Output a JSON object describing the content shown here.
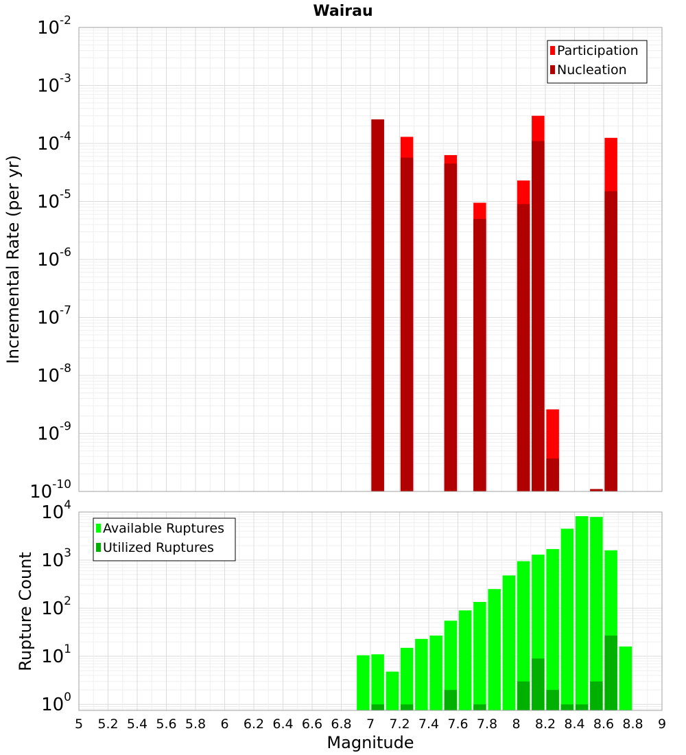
{
  "figure": {
    "title": "Wairau",
    "xlabel": "Magnitude"
  },
  "chart_data": [
    {
      "type": "bar",
      "title": "Wairau",
      "ylabel": "Incremental Rate (per yr)",
      "yscale": "log",
      "ylim": [
        1e-10,
        0.01
      ],
      "xlim": [
        5,
        9
      ],
      "grid": true,
      "legend_position": "top-right",
      "series": [
        {
          "name": "Participation",
          "color": "#ff0000",
          "x": [
            7.05,
            7.25,
            7.55,
            7.75,
            8.05,
            8.15,
            8.25,
            8.65
          ],
          "values": [
            0.00026,
            0.00013,
            6.3e-05,
            9.5e-06,
            2.3e-05,
            0.0003,
            2.6e-09,
            0.000125
          ]
        },
        {
          "name": "Nucleation",
          "color": "#b00000",
          "x": [
            7.05,
            7.25,
            7.55,
            7.75,
            8.05,
            8.15,
            8.25,
            8.55,
            8.65
          ],
          "values": [
            0.00026,
            5.7e-05,
            4.5e-05,
            5e-06,
            9e-06,
            0.00011,
            3.7e-10,
            1.1e-10,
            1.5e-05
          ]
        }
      ]
    },
    {
      "type": "bar",
      "xlabel": "Magnitude",
      "ylabel": "Rupture Count",
      "yscale": "log",
      "ylim": [
        0.75,
        10000
      ],
      "xlim": [
        5,
        9
      ],
      "grid": true,
      "legend_position": "top-left",
      "series": [
        {
          "name": "Available Ruptures",
          "color": "#00ff00",
          "x": [
            6.95,
            7.05,
            7.15,
            7.25,
            7.35,
            7.45,
            7.55,
            7.65,
            7.75,
            7.85,
            7.95,
            8.05,
            8.15,
            8.25,
            8.35,
            8.45,
            8.55,
            8.65,
            8.75
          ],
          "values": [
            10.5,
            11,
            4.8,
            15,
            23,
            27,
            55,
            90,
            135,
            250,
            480,
            950,
            1300,
            1700,
            4500,
            8200,
            7900,
            1600,
            16
          ]
        },
        {
          "name": "Utilized Ruptures",
          "color": "#00b000",
          "x": [
            7.05,
            7.25,
            7.55,
            7.75,
            8.05,
            8.15,
            8.25,
            8.35,
            8.45,
            8.55,
            8.65
          ],
          "values": [
            1,
            1,
            2,
            1,
            3,
            9,
            2,
            1,
            1,
            3,
            27
          ]
        }
      ]
    }
  ],
  "axes": {
    "x_ticks": [
      "5",
      "5.2",
      "5.4",
      "5.6",
      "5.8",
      "6",
      "6.2",
      "6.4",
      "6.6",
      "6.8",
      "7",
      "7.2",
      "7.4",
      "7.6",
      "7.8",
      "8",
      "8.2",
      "8.4",
      "8.6",
      "8.8",
      "9"
    ],
    "top_y_ticks": [
      {
        "base": "10",
        "exp": "-2"
      },
      {
        "base": "10",
        "exp": "-3"
      },
      {
        "base": "10",
        "exp": "-4"
      },
      {
        "base": "10",
        "exp": "-5"
      },
      {
        "base": "10",
        "exp": "-6"
      },
      {
        "base": "10",
        "exp": "-7"
      },
      {
        "base": "10",
        "exp": "-8"
      },
      {
        "base": "10",
        "exp": "-9"
      },
      {
        "base": "10",
        "exp": "-10"
      }
    ],
    "bottom_y_ticks": [
      {
        "base": "10",
        "exp": "4"
      },
      {
        "base": "10",
        "exp": "3"
      },
      {
        "base": "10",
        "exp": "2"
      },
      {
        "base": "10",
        "exp": "1"
      },
      {
        "base": "10",
        "exp": "0"
      }
    ]
  }
}
